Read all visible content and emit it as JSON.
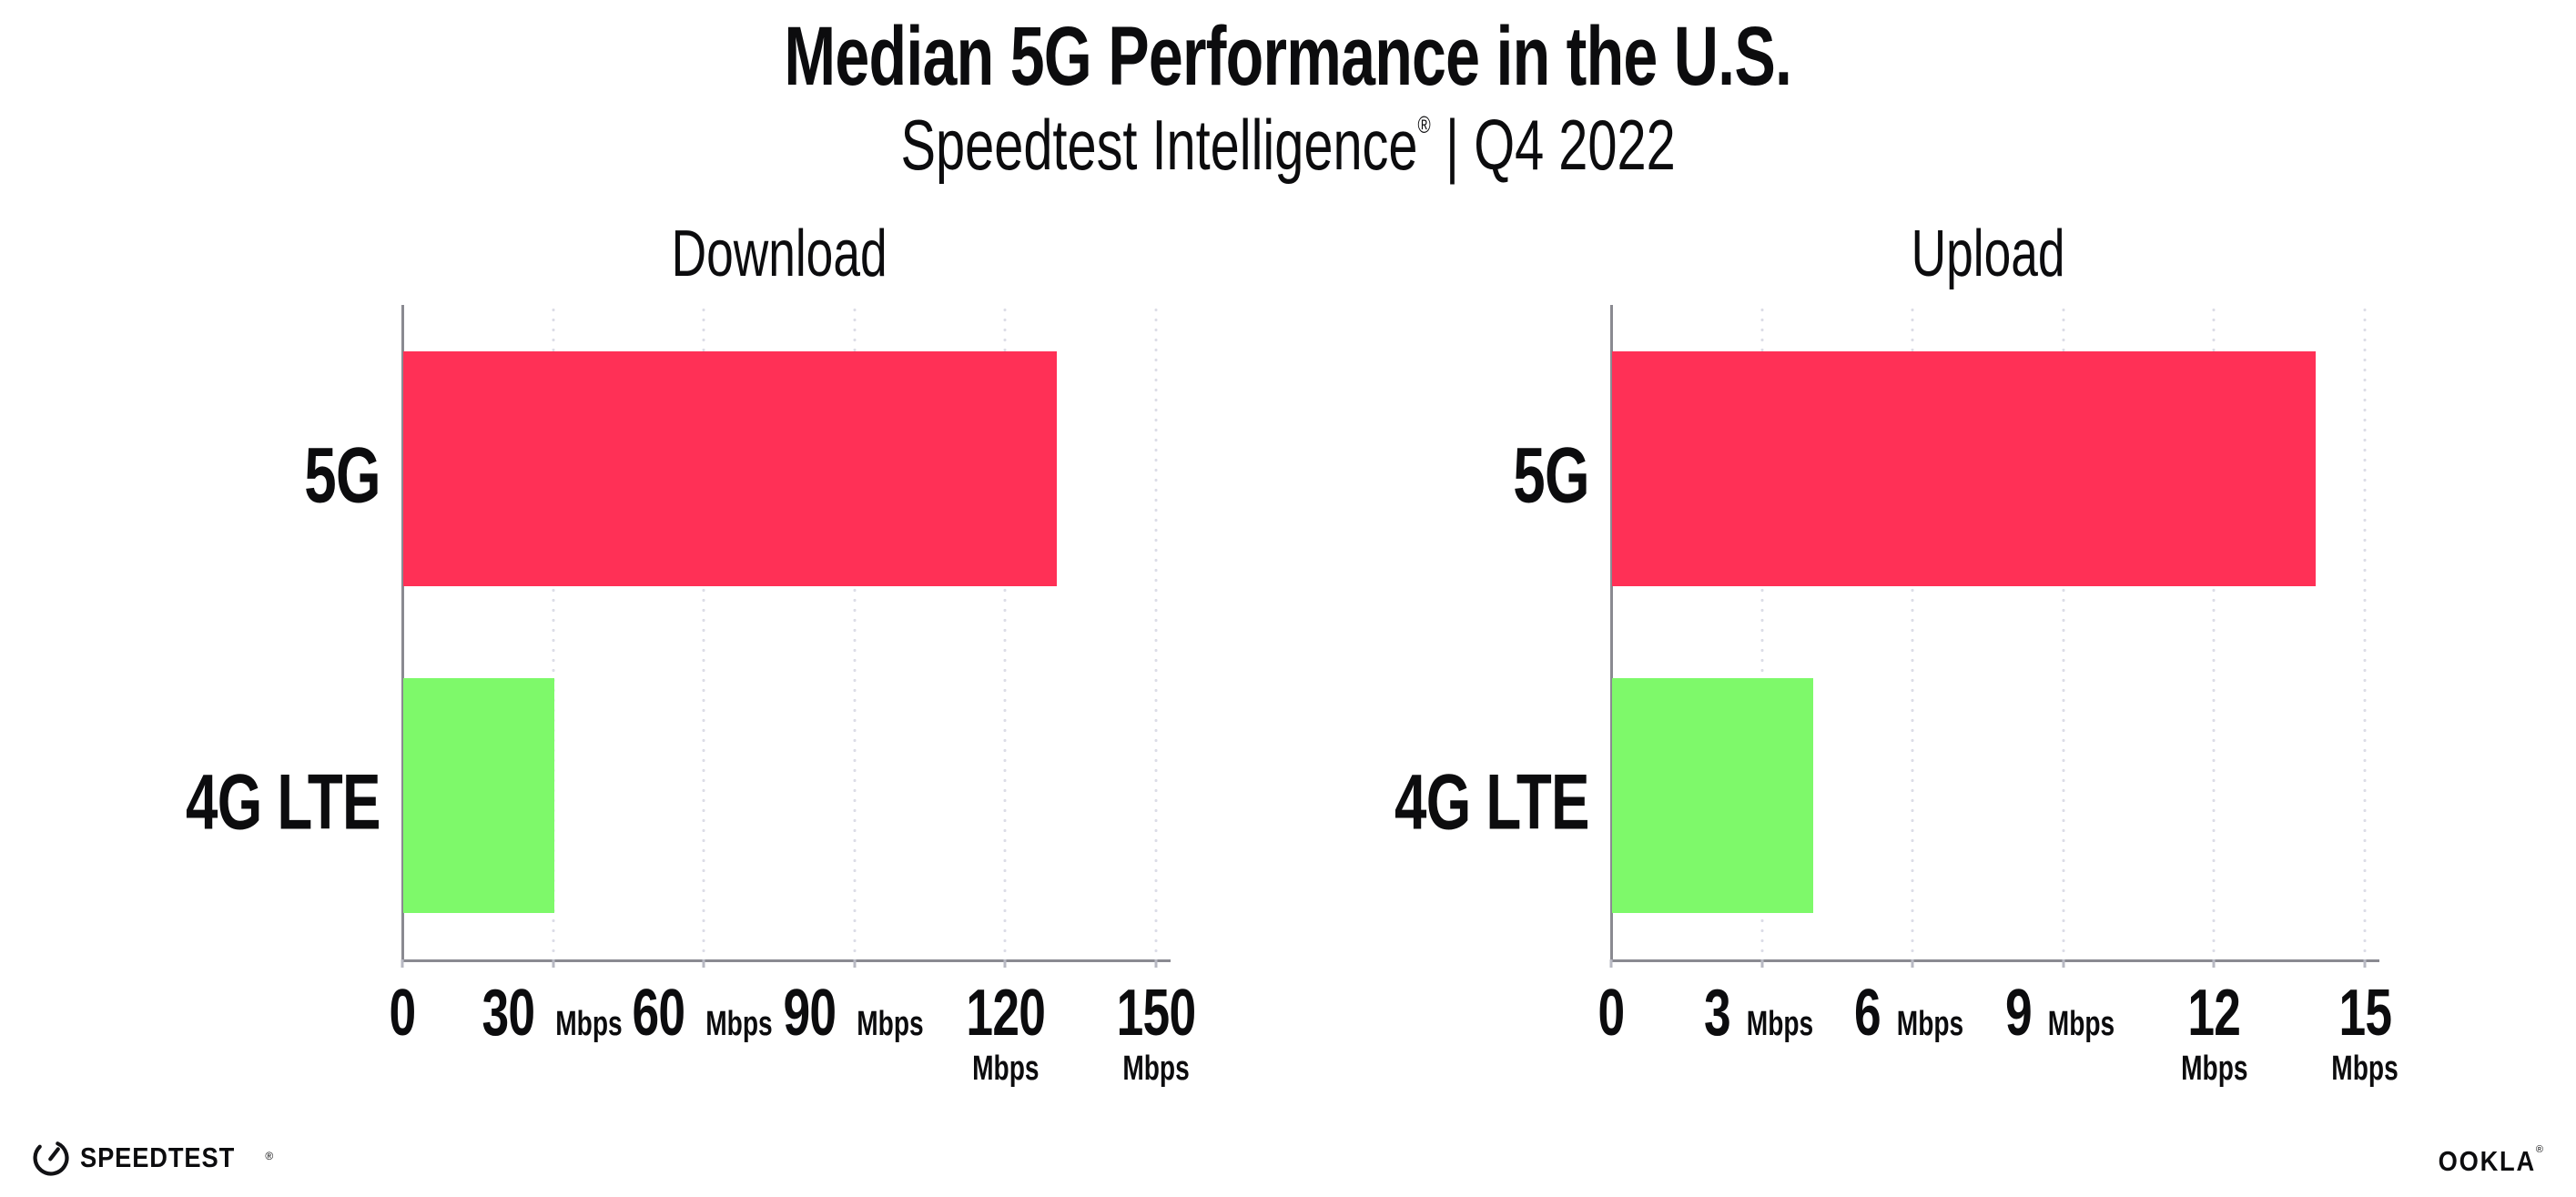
{
  "header": {
    "title": "Median 5G Performance in the U.S.",
    "subtitle": {
      "brand": "Speedtest Intelligence",
      "registered_mark": "®",
      "separator": "|",
      "period": "Q4 2022"
    }
  },
  "chart_data": [
    {
      "type": "bar",
      "orientation": "horizontal",
      "title": "Download",
      "categories": [
        "5G",
        "4G LTE"
      ],
      "values": [
        130,
        30
      ],
      "unit": "Mbps",
      "xlim": [
        0,
        150
      ],
      "xticks": [
        0,
        30,
        60,
        90,
        120,
        150
      ],
      "grid": "vertical-dotted",
      "legend": "none",
      "bar_colors": [
        "#FF3056",
        "#7EF96A"
      ]
    },
    {
      "type": "bar",
      "orientation": "horizontal",
      "title": "Upload",
      "categories": [
        "5G",
        "4G LTE"
      ],
      "values": [
        14,
        4
      ],
      "unit": "Mbps",
      "xlim": [
        0,
        15
      ],
      "xticks": [
        0,
        3,
        6,
        9,
        12,
        15
      ],
      "grid": "vertical-dotted",
      "legend": "none",
      "bar_colors": [
        "#FF3056",
        "#7EF96A"
      ]
    }
  ],
  "footer": {
    "speedtest_wordmark": "SPEEDTEST",
    "speedtest_registered_mark": "®",
    "ookla_wordmark": "OOKLA",
    "ookla_registered_mark": "®"
  },
  "colors": {
    "bar_5g": "#FF3056",
    "bar_4g_lte": "#7EF96A",
    "axis": "#8A8A91",
    "gridline": "#DCDDE7",
    "text": "#0C0C0E",
    "background": "#FFFFFF"
  }
}
